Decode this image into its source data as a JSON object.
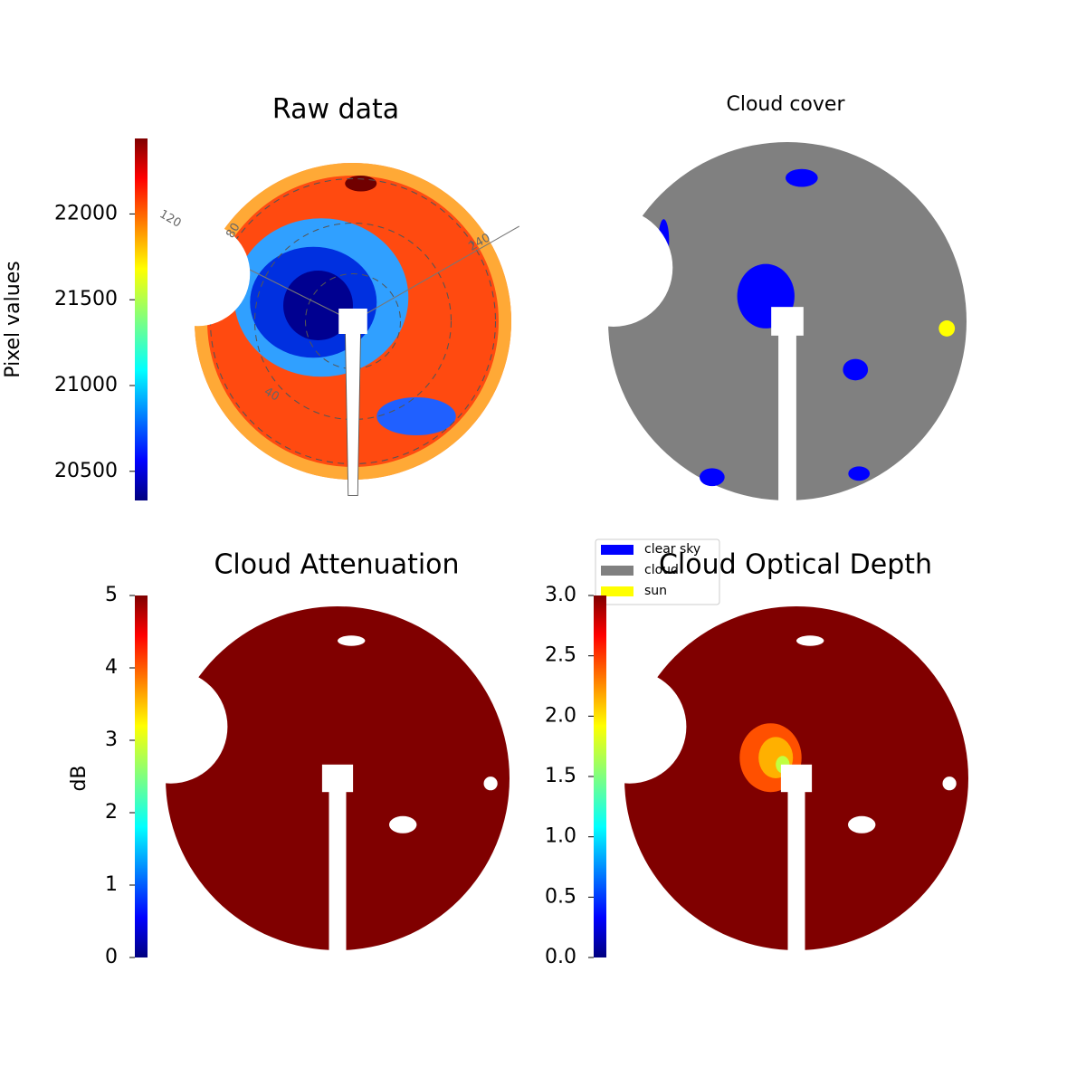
{
  "chart_data": [
    {
      "type": "image",
      "title": "Raw data",
      "ylabel": "Pixel values",
      "ylim": [
        20330,
        22440
      ],
      "yticks": [
        20500,
        21000,
        21500,
        22000
      ],
      "annotations": [
        "120",
        "80",
        "240",
        "40"
      ]
    },
    {
      "type": "image",
      "title": "Cloud cover",
      "series": [
        {
          "name": "clear sky",
          "color": "#0000ff"
        },
        {
          "name": "cloud",
          "color": "#808080"
        },
        {
          "name": "sun",
          "color": "#ffff00"
        }
      ]
    },
    {
      "type": "image",
      "title": "Cloud Attenuation",
      "ylabel": "dB",
      "ylim": [
        0,
        5
      ],
      "yticks": [
        0,
        1,
        2,
        3,
        4,
        5
      ]
    },
    {
      "type": "image",
      "title": "Cloud Optical Depth",
      "ylim": [
        0,
        3
      ],
      "yticks": [
        {
          "value": 0,
          "label": "0.0"
        },
        0.5,
        {
          "value": 1,
          "label": "1.0"
        },
        1.5,
        {
          "value": 2,
          "label": "2.0"
        },
        2.5,
        {
          "value": 3,
          "label": "3.0"
        }
      ]
    }
  ]
}
